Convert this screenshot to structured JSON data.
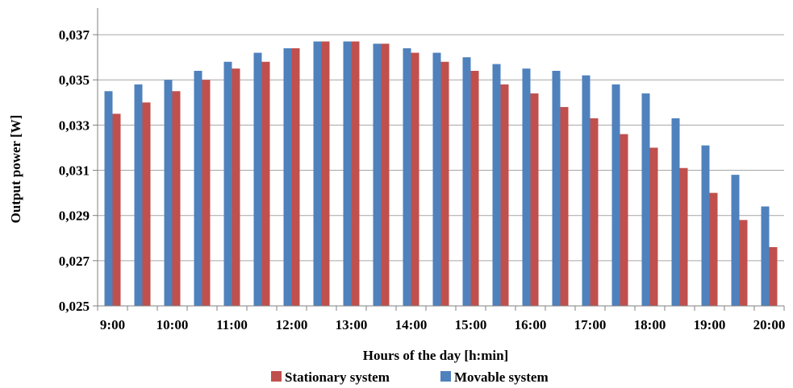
{
  "chart_data": {
    "type": "bar",
    "title": "",
    "xlabel": "Hours of the day [h:min]",
    "ylabel": "Output power [W]",
    "ylim": [
      0.025,
      0.038
    ],
    "y_ticks": [
      "0,025",
      "0,027",
      "0,029",
      "0,031",
      "0,033",
      "0,035",
      "0,037"
    ],
    "y_tick_values": [
      0.025,
      0.027,
      0.029,
      0.031,
      0.033,
      0.035,
      0.037
    ],
    "x_ticks": [
      "9:00",
      "10:00",
      "11:00",
      "12:00",
      "13:00",
      "14:00",
      "15:00",
      "16:00",
      "17:00",
      "18:00",
      "19:00",
      "20:00"
    ],
    "categories": [
      "9:00",
      "9:30",
      "10:00",
      "10:30",
      "11:00",
      "11:30",
      "12:00",
      "12:30",
      "13:00",
      "13:30",
      "14:00",
      "14:30",
      "15:00",
      "15:30",
      "16:00",
      "16:30",
      "17:00",
      "17:30",
      "18:00",
      "18:30",
      "19:00",
      "19:30",
      "20:00"
    ],
    "grid": true,
    "legend_position": "bottom",
    "series": [
      {
        "name": "Movable system",
        "color": "#4f81bd",
        "values": [
          0.0345,
          0.0348,
          0.035,
          0.0354,
          0.0358,
          0.0362,
          0.0364,
          0.0367,
          0.0367,
          0.0366,
          0.0364,
          0.0362,
          0.036,
          0.0357,
          0.0355,
          0.0354,
          0.0352,
          0.0348,
          0.0344,
          0.0333,
          0.0321,
          0.0308,
          0.0294
        ]
      },
      {
        "name": "Stationary system",
        "color": "#c0504d",
        "values": [
          0.0335,
          0.034,
          0.0345,
          0.035,
          0.0355,
          0.0358,
          0.0364,
          0.0367,
          0.0367,
          0.0366,
          0.0362,
          0.0358,
          0.0354,
          0.0348,
          0.0344,
          0.0338,
          0.0333,
          0.0326,
          0.032,
          0.0311,
          0.03,
          0.0288,
          0.0276
        ]
      }
    ],
    "legend_order": [
      "Stationary system",
      "Movable system"
    ]
  }
}
